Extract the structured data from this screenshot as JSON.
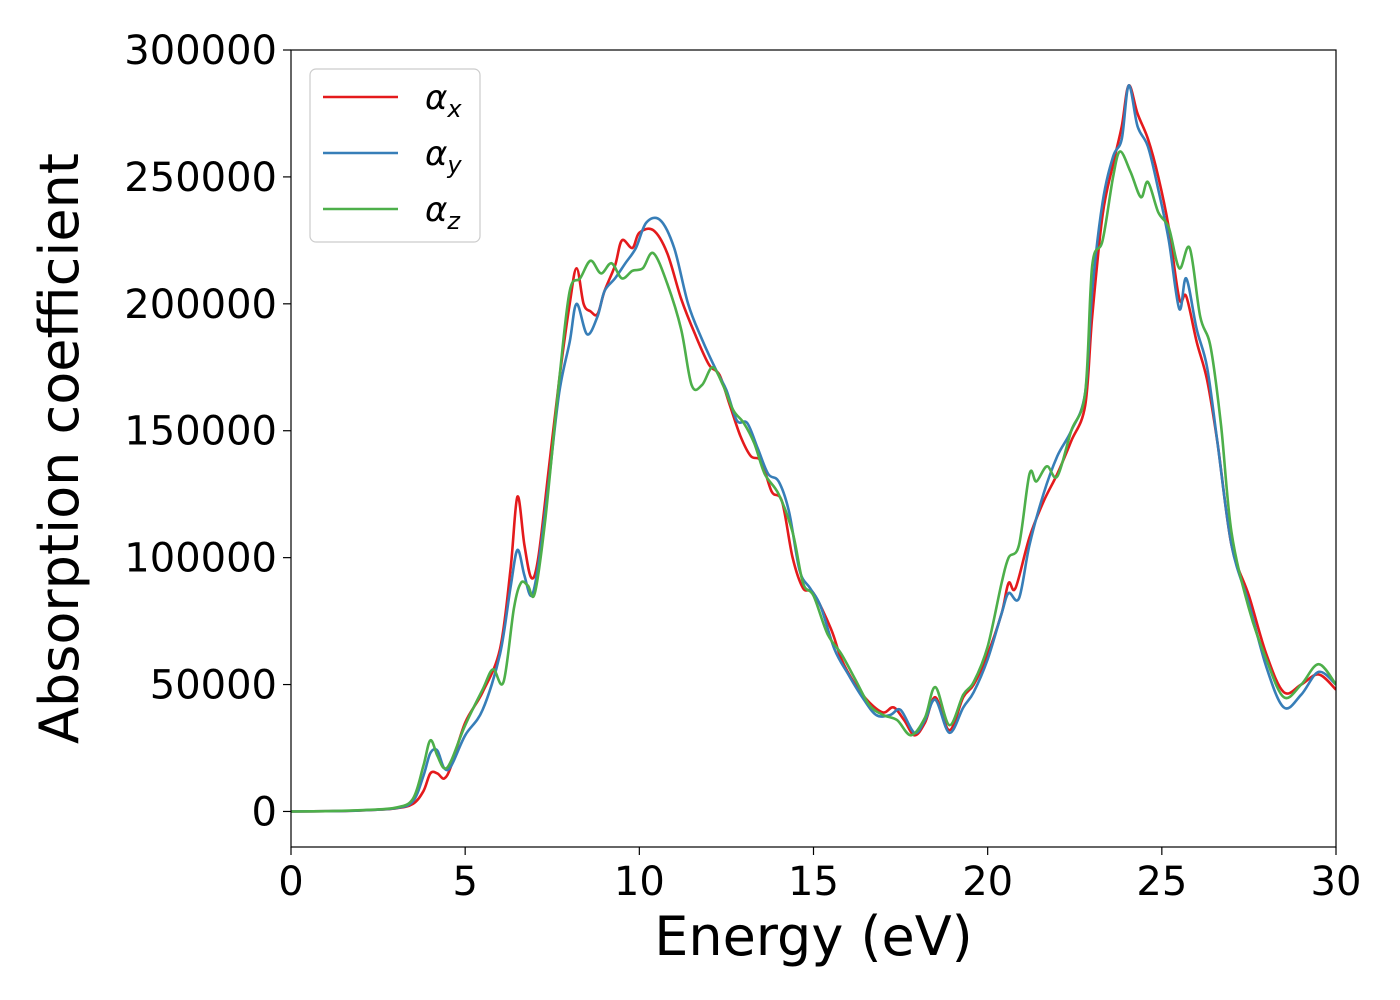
{
  "chart_data": {
    "type": "line",
    "title": "",
    "xlabel": "Energy (eV)",
    "ylabel": "Absorption coefficient",
    "xlim": [
      0,
      30
    ],
    "ylim": [
      -14000,
      300000
    ],
    "grid": false,
    "legend_position": "top-left",
    "xticks": [
      0,
      5,
      10,
      15,
      20,
      25,
      30
    ],
    "xtick_labels": [
      "0",
      "5",
      "10",
      "15",
      "20",
      "25",
      "30"
    ],
    "yticks": [
      0,
      50000,
      100000,
      150000,
      200000,
      250000,
      300000
    ],
    "ytick_labels": [
      "0",
      "50000",
      "100000",
      "150000",
      "200000",
      "250000",
      "300000"
    ],
    "series": [
      {
        "name": "αx",
        "legend_base": "α",
        "legend_sub": "x",
        "color": "#e41a1c",
        "points": [
          [
            0,
            0
          ],
          [
            1,
            100
          ],
          [
            2,
            400
          ],
          [
            3,
            1200
          ],
          [
            3.5,
            3000
          ],
          [
            3.8,
            8000
          ],
          [
            4.0,
            15000
          ],
          [
            4.2,
            15000
          ],
          [
            4.4,
            13000
          ],
          [
            4.6,
            18000
          ],
          [
            5.0,
            35000
          ],
          [
            5.5,
            47000
          ],
          [
            6.0,
            64000
          ],
          [
            6.3,
            95000
          ],
          [
            6.5,
            124000
          ],
          [
            6.7,
            105000
          ],
          [
            6.9,
            92000
          ],
          [
            7.1,
            100000
          ],
          [
            7.4,
            135000
          ],
          [
            7.7,
            170000
          ],
          [
            8.0,
            200000
          ],
          [
            8.2,
            214000
          ],
          [
            8.4,
            200000
          ],
          [
            8.6,
            197000
          ],
          [
            8.8,
            196000
          ],
          [
            9.0,
            205000
          ],
          [
            9.3,
            215000
          ],
          [
            9.5,
            225000
          ],
          [
            9.8,
            222000
          ],
          [
            10.0,
            228000
          ],
          [
            10.4,
            229000
          ],
          [
            10.8,
            220000
          ],
          [
            11.2,
            202000
          ],
          [
            11.6,
            188000
          ],
          [
            12.0,
            176000
          ],
          [
            12.3,
            172000
          ],
          [
            12.6,
            160000
          ],
          [
            12.9,
            148000
          ],
          [
            13.2,
            140000
          ],
          [
            13.5,
            138000
          ],
          [
            13.8,
            126000
          ],
          [
            14.1,
            122000
          ],
          [
            14.4,
            100000
          ],
          [
            14.7,
            88000
          ],
          [
            15.0,
            86000
          ],
          [
            15.5,
            72000
          ],
          [
            15.8,
            60000
          ],
          [
            16.2,
            50000
          ],
          [
            16.6,
            43000
          ],
          [
            17.0,
            39000
          ],
          [
            17.3,
            41000
          ],
          [
            17.6,
            36000
          ],
          [
            17.9,
            30000
          ],
          [
            18.2,
            35000
          ],
          [
            18.5,
            45000
          ],
          [
            18.9,
            32000
          ],
          [
            19.3,
            45000
          ],
          [
            19.6,
            50000
          ],
          [
            20.0,
            62000
          ],
          [
            20.4,
            78000
          ],
          [
            20.6,
            90000
          ],
          [
            20.8,
            88000
          ],
          [
            21.2,
            108000
          ],
          [
            21.6,
            122000
          ],
          [
            22.0,
            133000
          ],
          [
            22.4,
            146000
          ],
          [
            22.8,
            160000
          ],
          [
            23.0,
            195000
          ],
          [
            23.3,
            235000
          ],
          [
            23.6,
            255000
          ],
          [
            23.85,
            270000
          ],
          [
            24.05,
            286000
          ],
          [
            24.3,
            275000
          ],
          [
            24.6,
            265000
          ],
          [
            24.9,
            250000
          ],
          [
            25.2,
            230000
          ],
          [
            25.5,
            202000
          ],
          [
            25.7,
            203000
          ],
          [
            26.0,
            185000
          ],
          [
            26.3,
            170000
          ],
          [
            26.6,
            145000
          ],
          [
            27.0,
            105000
          ],
          [
            27.5,
            85000
          ],
          [
            28.0,
            62000
          ],
          [
            28.5,
            47000
          ],
          [
            29.0,
            50000
          ],
          [
            29.5,
            54000
          ],
          [
            30,
            48000
          ]
        ]
      },
      {
        "name": "αy",
        "legend_base": "α",
        "legend_sub": "y",
        "color": "#377eb8",
        "points": [
          [
            0,
            0
          ],
          [
            1,
            100
          ],
          [
            2,
            400
          ],
          [
            3,
            1300
          ],
          [
            3.5,
            4000
          ],
          [
            3.8,
            14000
          ],
          [
            4.0,
            23000
          ],
          [
            4.2,
            24000
          ],
          [
            4.4,
            17000
          ],
          [
            4.6,
            18000
          ],
          [
            5.0,
            30000
          ],
          [
            5.5,
            40000
          ],
          [
            6.0,
            62000
          ],
          [
            6.3,
            88000
          ],
          [
            6.5,
            103000
          ],
          [
            6.7,
            93000
          ],
          [
            6.9,
            85000
          ],
          [
            7.1,
            97000
          ],
          [
            7.4,
            130000
          ],
          [
            7.7,
            165000
          ],
          [
            8.0,
            185000
          ],
          [
            8.2,
            200000
          ],
          [
            8.5,
            188000
          ],
          [
            8.8,
            195000
          ],
          [
            9.0,
            205000
          ],
          [
            9.3,
            210000
          ],
          [
            9.6,
            216000
          ],
          [
            9.9,
            222000
          ],
          [
            10.2,
            232000
          ],
          [
            10.6,
            233000
          ],
          [
            11.0,
            222000
          ],
          [
            11.4,
            200000
          ],
          [
            11.8,
            186000
          ],
          [
            12.2,
            174000
          ],
          [
            12.5,
            166000
          ],
          [
            12.8,
            154000
          ],
          [
            13.1,
            153000
          ],
          [
            13.4,
            143000
          ],
          [
            13.7,
            133000
          ],
          [
            14.0,
            130000
          ],
          [
            14.3,
            118000
          ],
          [
            14.6,
            95000
          ],
          [
            14.9,
            88000
          ],
          [
            15.2,
            81000
          ],
          [
            15.6,
            64000
          ],
          [
            16.0,
            54000
          ],
          [
            16.4,
            45000
          ],
          [
            16.8,
            38000
          ],
          [
            17.2,
            38000
          ],
          [
            17.5,
            40000
          ],
          [
            17.9,
            31000
          ],
          [
            18.2,
            36000
          ],
          [
            18.5,
            44000
          ],
          [
            18.9,
            31000
          ],
          [
            19.3,
            41000
          ],
          [
            19.6,
            47000
          ],
          [
            20.0,
            60000
          ],
          [
            20.4,
            78000
          ],
          [
            20.6,
            86000
          ],
          [
            20.9,
            84000
          ],
          [
            21.2,
            105000
          ],
          [
            21.6,
            125000
          ],
          [
            22.0,
            140000
          ],
          [
            22.4,
            150000
          ],
          [
            22.8,
            165000
          ],
          [
            23.0,
            205000
          ],
          [
            23.3,
            240000
          ],
          [
            23.6,
            258000
          ],
          [
            23.85,
            265000
          ],
          [
            24.05,
            286000
          ],
          [
            24.3,
            270000
          ],
          [
            24.6,
            262000
          ],
          [
            24.9,
            245000
          ],
          [
            25.2,
            225000
          ],
          [
            25.5,
            198000
          ],
          [
            25.7,
            210000
          ],
          [
            26.0,
            190000
          ],
          [
            26.3,
            175000
          ],
          [
            26.6,
            145000
          ],
          [
            27.0,
            105000
          ],
          [
            27.5,
            82000
          ],
          [
            28.0,
            57000
          ],
          [
            28.5,
            41000
          ],
          [
            29.0,
            46000
          ],
          [
            29.5,
            55000
          ],
          [
            30,
            50000
          ]
        ]
      },
      {
        "name": "αz",
        "legend_base": "α",
        "legend_sub": "z",
        "color": "#4daf4a",
        "points": [
          [
            0,
            0
          ],
          [
            1,
            100
          ],
          [
            2,
            500
          ],
          [
            3,
            1500
          ],
          [
            3.5,
            5000
          ],
          [
            3.8,
            18000
          ],
          [
            4.0,
            28000
          ],
          [
            4.2,
            22000
          ],
          [
            4.4,
            17000
          ],
          [
            4.6,
            20000
          ],
          [
            5.0,
            34000
          ],
          [
            5.5,
            48000
          ],
          [
            5.8,
            56000
          ],
          [
            6.1,
            51000
          ],
          [
            6.4,
            80000
          ],
          [
            6.6,
            90000
          ],
          [
            6.8,
            89000
          ],
          [
            7.0,
            86000
          ],
          [
            7.3,
            115000
          ],
          [
            7.7,
            170000
          ],
          [
            8.0,
            205000
          ],
          [
            8.3,
            210000
          ],
          [
            8.6,
            217000
          ],
          [
            8.9,
            212000
          ],
          [
            9.2,
            216000
          ],
          [
            9.5,
            210000
          ],
          [
            9.8,
            213000
          ],
          [
            10.1,
            214000
          ],
          [
            10.4,
            220000
          ],
          [
            10.8,
            208000
          ],
          [
            11.2,
            190000
          ],
          [
            11.5,
            168000
          ],
          [
            11.8,
            168000
          ],
          [
            12.1,
            175000
          ],
          [
            12.4,
            168000
          ],
          [
            12.7,
            158000
          ],
          [
            13.0,
            153000
          ],
          [
            13.3,
            145000
          ],
          [
            13.6,
            133000
          ],
          [
            14.0,
            125000
          ],
          [
            14.4,
            110000
          ],
          [
            14.7,
            90000
          ],
          [
            15.0,
            85000
          ],
          [
            15.4,
            70000
          ],
          [
            15.8,
            62000
          ],
          [
            16.2,
            52000
          ],
          [
            16.6,
            42000
          ],
          [
            17.0,
            38000
          ],
          [
            17.4,
            36000
          ],
          [
            17.8,
            30000
          ],
          [
            18.2,
            37000
          ],
          [
            18.5,
            49000
          ],
          [
            18.9,
            34000
          ],
          [
            19.3,
            46000
          ],
          [
            19.6,
            51000
          ],
          [
            20.0,
            65000
          ],
          [
            20.4,
            90000
          ],
          [
            20.6,
            100000
          ],
          [
            20.9,
            105000
          ],
          [
            21.2,
            133000
          ],
          [
            21.4,
            130000
          ],
          [
            21.7,
            136000
          ],
          [
            22.0,
            132000
          ],
          [
            22.4,
            150000
          ],
          [
            22.8,
            165000
          ],
          [
            23.0,
            215000
          ],
          [
            23.3,
            225000
          ],
          [
            23.6,
            250000
          ],
          [
            23.8,
            260000
          ],
          [
            24.1,
            252000
          ],
          [
            24.4,
            242000
          ],
          [
            24.6,
            248000
          ],
          [
            24.9,
            236000
          ],
          [
            25.2,
            230000
          ],
          [
            25.5,
            214000
          ],
          [
            25.8,
            222000
          ],
          [
            26.1,
            195000
          ],
          [
            26.4,
            183000
          ],
          [
            26.7,
            152000
          ],
          [
            27.0,
            110000
          ],
          [
            27.5,
            80000
          ],
          [
            28.0,
            60000
          ],
          [
            28.5,
            45000
          ],
          [
            29.0,
            50000
          ],
          [
            29.5,
            58000
          ],
          [
            30,
            50000
          ]
        ]
      }
    ]
  }
}
